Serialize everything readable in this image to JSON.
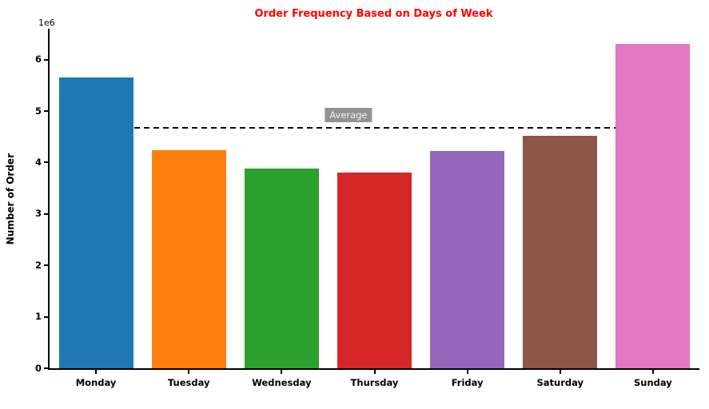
{
  "chart_data": {
    "type": "bar",
    "title": "Order Frequency Based on Days of Week",
    "title_color": "#ff0000",
    "categories": [
      "Monday",
      "Tuesday",
      "Wednesday",
      "Thursday",
      "Friday",
      "Saturday",
      "Sunday"
    ],
    "values": [
      5.66,
      4.24,
      3.88,
      3.81,
      4.23,
      4.52,
      6.3
    ],
    "value_unit": "1e6",
    "bar_colors": [
      "#1f77b4",
      "#ff7f0e",
      "#2ca02c",
      "#d62728",
      "#9467bd",
      "#8c564b",
      "#e377c2"
    ],
    "average_line": {
      "value": 4.66,
      "label": "Average",
      "style": "dashed",
      "color": "#000000"
    },
    "xlabel": "",
    "ylabel": "Number of Order",
    "ylim": [
      0,
      6.6
    ],
    "yticks": [
      0,
      1,
      2,
      3,
      4,
      5,
      6
    ],
    "grid": false,
    "legend": false,
    "bar_width_fraction": 0.8
  }
}
